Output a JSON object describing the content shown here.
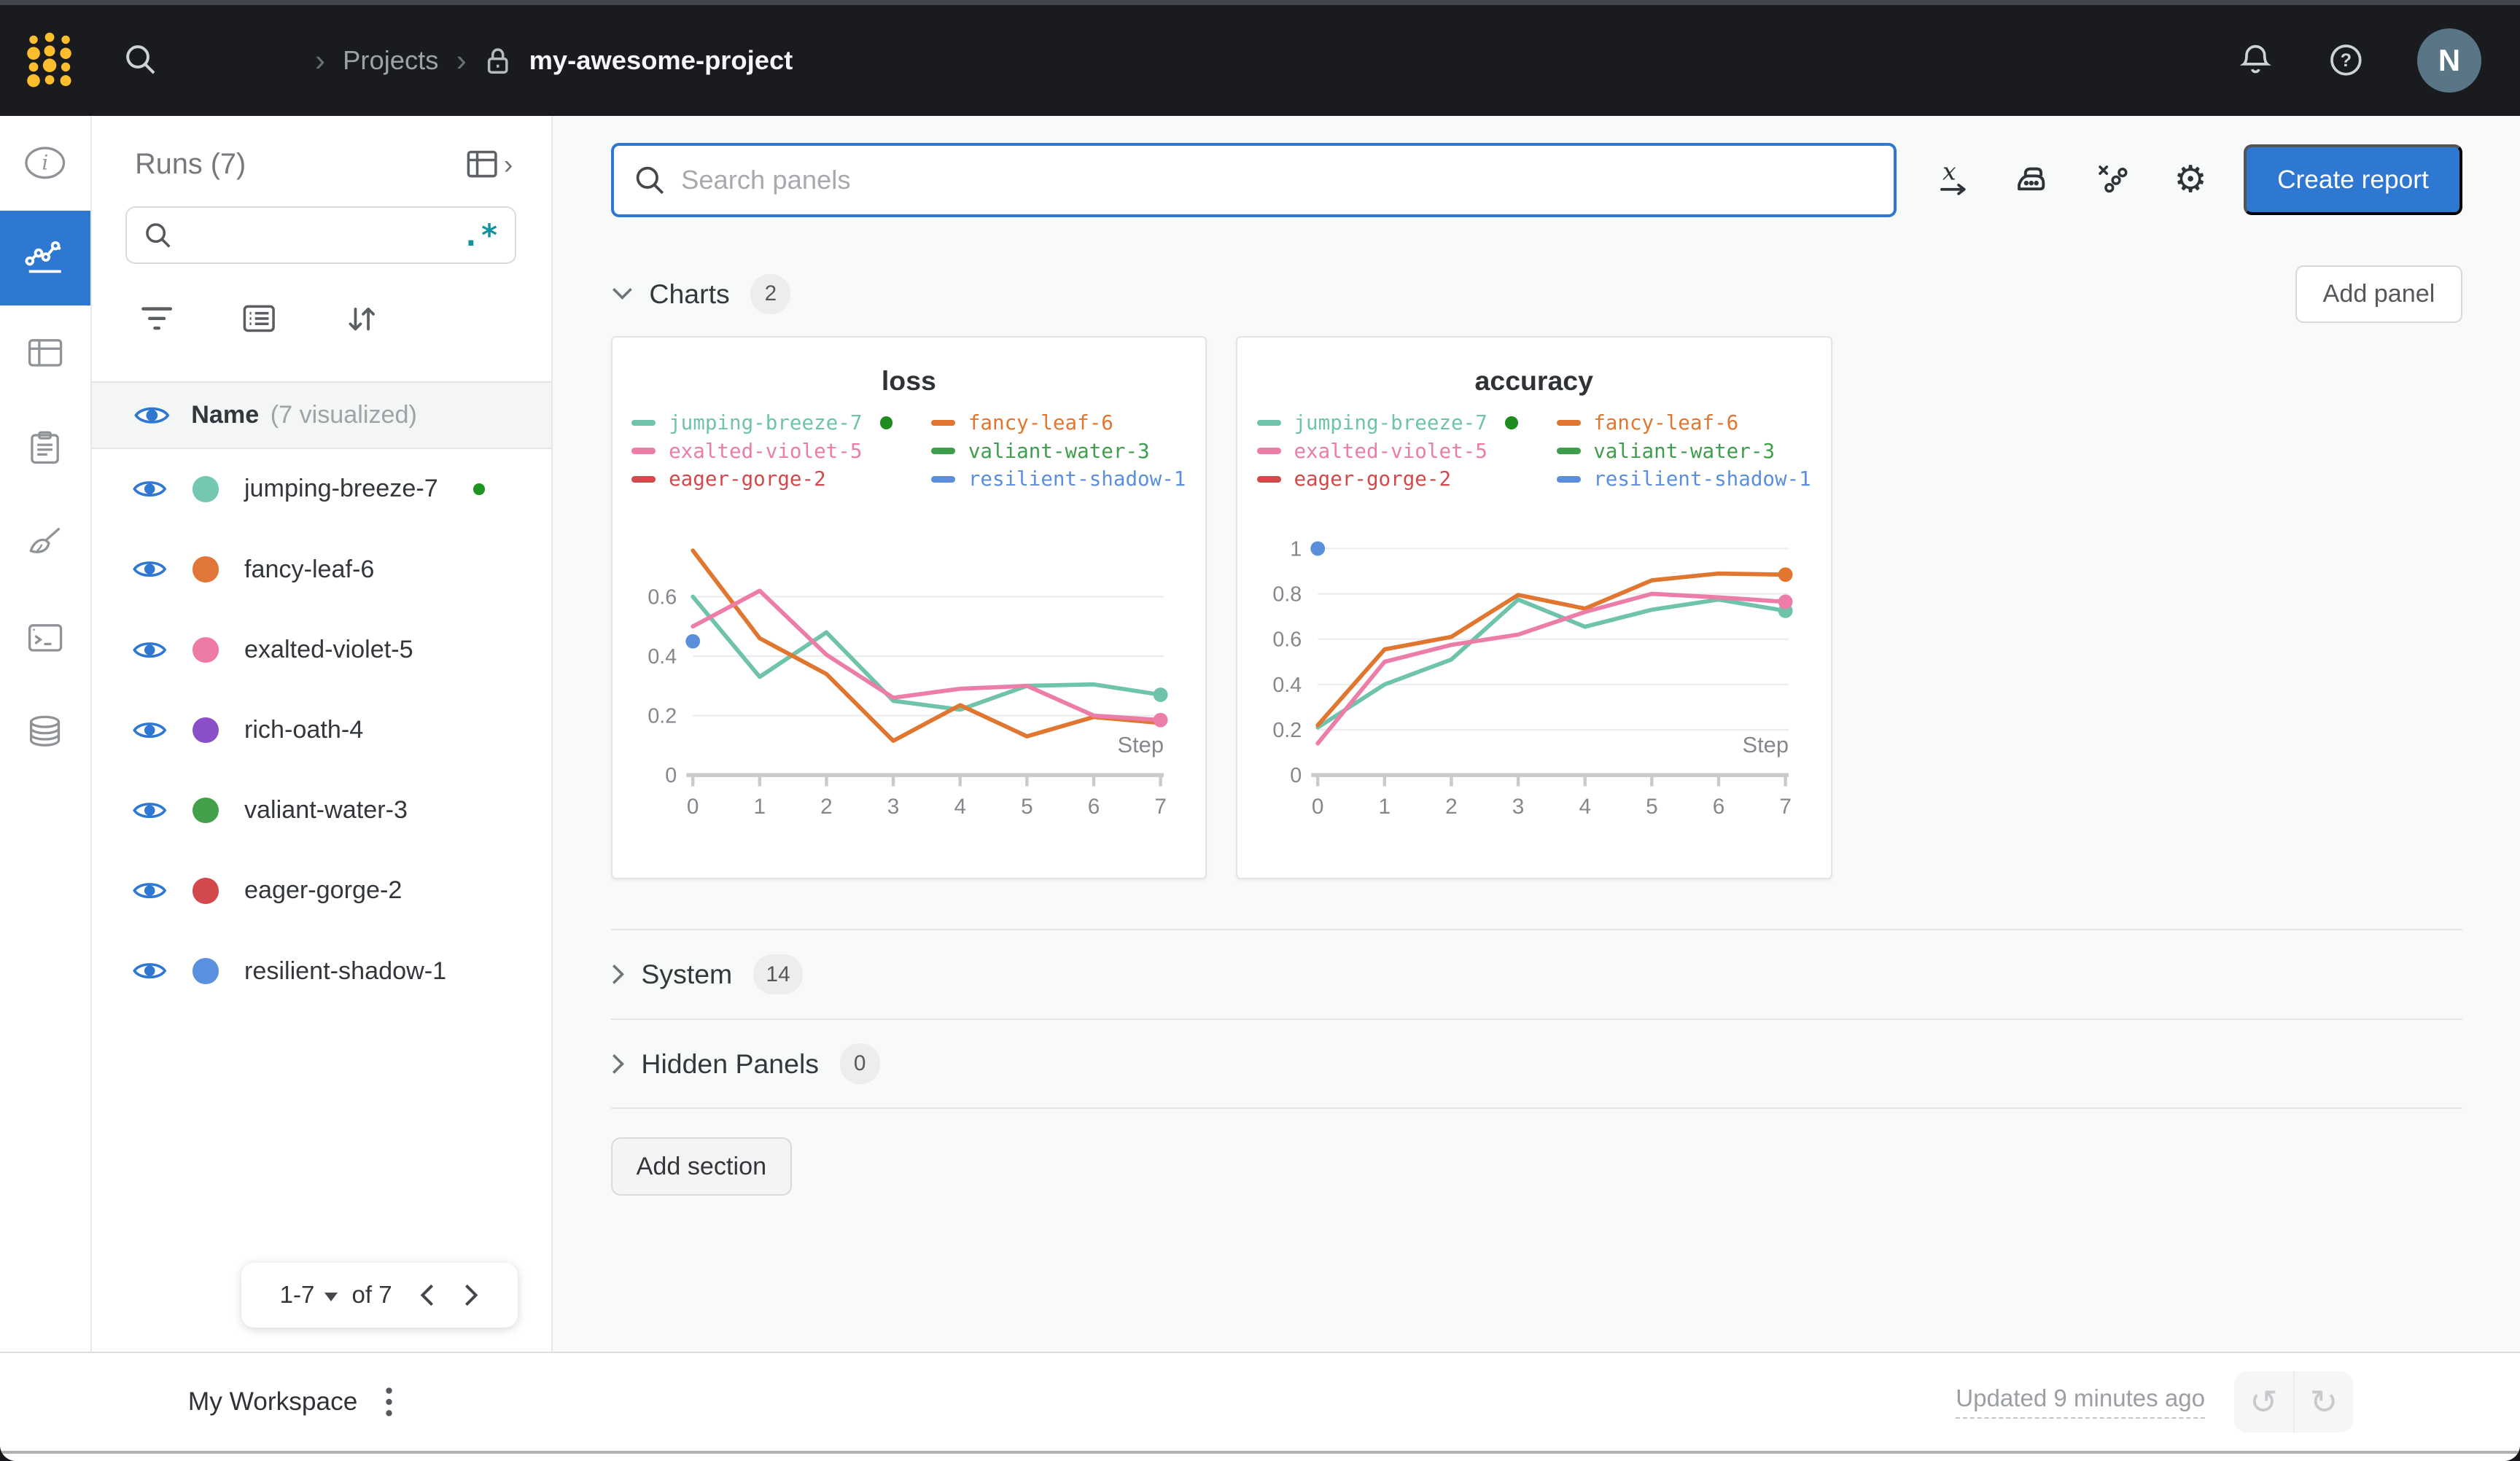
{
  "topnav": {
    "breadcrumb": {
      "section": "Projects",
      "project": "my-awesome-project"
    },
    "avatar_initial": "N"
  },
  "side_rail": {
    "icons": [
      "info-icon",
      "line-chart-icon",
      "table-icon",
      "clipboard-icon",
      "broom-icon",
      "terminal-icon",
      "database-icon"
    ],
    "active_icon": "line-chart-icon",
    "active_color": "#2e78d2"
  },
  "runs_sidebar": {
    "title": "Runs (7)",
    "header_name": "Name",
    "header_visualized": "(7 visualized)",
    "runs": [
      {
        "name": "jumping-breeze-7",
        "color": "#74c7b0",
        "running": true
      },
      {
        "name": "fancy-leaf-6",
        "color": "#e1763a",
        "running": false
      },
      {
        "name": "exalted-violet-5",
        "color": "#ee7ba6",
        "running": false
      },
      {
        "name": "rich-oath-4",
        "color": "#8a4fc8",
        "running": false
      },
      {
        "name": "valiant-water-3",
        "color": "#43a04b",
        "running": false
      },
      {
        "name": "eager-gorge-2",
        "color": "#d2494b",
        "running": false
      },
      {
        "name": "resilient-shadow-1",
        "color": "#5a90dd",
        "running": false
      }
    ],
    "pagination": {
      "range": "1-7",
      "of_label": "of 7"
    }
  },
  "main": {
    "search_placeholder": "Search panels",
    "create_report_label": "Create report",
    "add_panel_label": "Add panel",
    "add_section_label": "Add section",
    "charts_section": {
      "label": "Charts",
      "count": "2"
    },
    "system_section": {
      "label": "System",
      "count": "14"
    },
    "hidden_section": {
      "label": "Hidden Panels",
      "count": "0"
    }
  },
  "footer": {
    "workspace_label": "My Workspace",
    "updated_label": "Updated 9 minutes ago"
  },
  "chart_data": [
    {
      "type": "line",
      "title": "loss",
      "xlabel": "Step",
      "x": [
        0,
        1,
        2,
        3,
        4,
        5,
        6,
        7
      ],
      "xticks": [
        0,
        1,
        2,
        3,
        4,
        5,
        6,
        7
      ],
      "yticks": [
        0,
        0.2,
        0.4,
        0.6
      ],
      "ylim": [
        0,
        0.8
      ],
      "grid": true,
      "legend_position": "top",
      "series": [
        {
          "name": "jumping-breeze-7",
          "color": "#6fc3ab",
          "running": true,
          "end_dot": true,
          "values": [
            0.6,
            0.33,
            0.48,
            0.25,
            0.22,
            0.3,
            0.305,
            0.27
          ]
        },
        {
          "name": "fancy-leaf-6",
          "color": "#e0762f",
          "running": false,
          "end_dot": false,
          "values": [
            0.755,
            0.46,
            0.34,
            0.115,
            0.235,
            0.13,
            0.195,
            0.175
          ]
        },
        {
          "name": "exalted-violet-5",
          "color": "#ec7ca8",
          "running": false,
          "end_dot": true,
          "values": [
            0.5,
            0.62,
            0.405,
            0.26,
            0.29,
            0.3,
            0.2,
            0.185
          ]
        },
        {
          "name": "valiant-water-3",
          "color": "#3f9e4b",
          "running": false,
          "end_dot": false,
          "values": []
        },
        {
          "name": "eager-gorge-2",
          "color": "#d2494b",
          "running": false,
          "end_dot": false,
          "values": []
        },
        {
          "name": "resilient-shadow-1",
          "color": "#5b8fdc",
          "running": false,
          "end_dot": false,
          "point_only": true,
          "values": [
            0.45
          ]
        }
      ]
    },
    {
      "type": "line",
      "title": "accuracy",
      "xlabel": "Step",
      "x": [
        0,
        1,
        2,
        3,
        4,
        5,
        6,
        7
      ],
      "xticks": [
        0,
        1,
        2,
        3,
        4,
        5,
        6,
        7
      ],
      "yticks": [
        0,
        0.2,
        0.4,
        0.6,
        0.8,
        1
      ],
      "ylim": [
        0,
        1.05
      ],
      "grid": true,
      "legend_position": "top",
      "series": [
        {
          "name": "jumping-breeze-7",
          "color": "#6fc3ab",
          "running": true,
          "end_dot": true,
          "values": [
            0.21,
            0.4,
            0.51,
            0.775,
            0.655,
            0.73,
            0.775,
            0.725
          ]
        },
        {
          "name": "fancy-leaf-6",
          "color": "#e0762f",
          "running": false,
          "end_dot": true,
          "values": [
            0.22,
            0.555,
            0.61,
            0.795,
            0.735,
            0.86,
            0.89,
            0.885
          ]
        },
        {
          "name": "exalted-violet-5",
          "color": "#ec7ca8",
          "running": false,
          "end_dot": true,
          "values": [
            0.14,
            0.5,
            0.575,
            0.62,
            0.72,
            0.8,
            0.785,
            0.765
          ]
        },
        {
          "name": "valiant-water-3",
          "color": "#3f9e4b",
          "running": false,
          "end_dot": false,
          "values": []
        },
        {
          "name": "eager-gorge-2",
          "color": "#d2494b",
          "running": false,
          "end_dot": false,
          "values": []
        },
        {
          "name": "resilient-shadow-1",
          "color": "#5b8fdc",
          "running": false,
          "end_dot": false,
          "point_only": true,
          "values": [
            1.0
          ]
        }
      ]
    }
  ]
}
